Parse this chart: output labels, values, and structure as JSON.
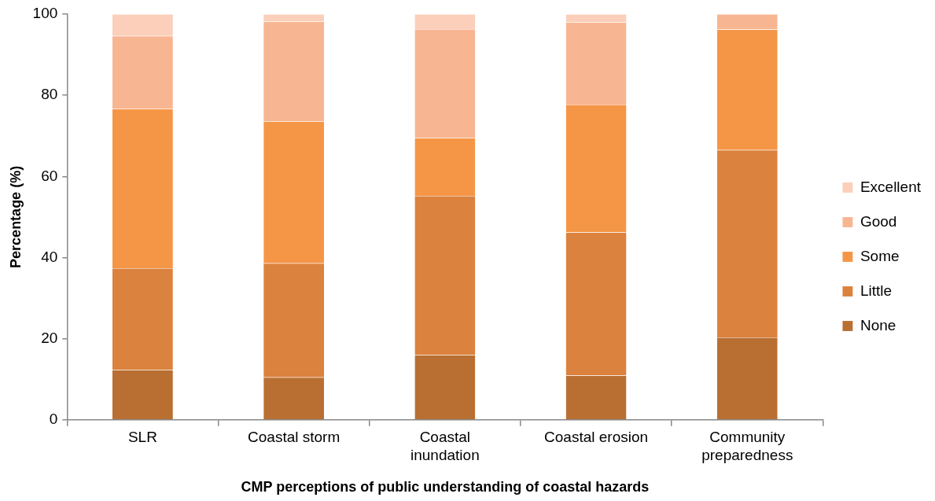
{
  "chart_data": {
    "type": "bar",
    "stacked": true,
    "xlabel": "CMP perceptions of public understanding of coastal hazards",
    "ylabel": "Percentage (%)",
    "categories": [
      "SLR",
      "Coastal storm",
      "Coastal inundation",
      "Coastal erosion",
      "Community preparedness"
    ],
    "series": [
      {
        "name": "None",
        "color": "#b96f32",
        "values": [
          12.3,
          10.5,
          16.0,
          10.9,
          20.3
        ]
      },
      {
        "name": "Little",
        "color": "#db823e",
        "values": [
          25.1,
          28.1,
          39.2,
          35.3,
          46.2
        ]
      },
      {
        "name": "Some",
        "color": "#f59647",
        "values": [
          39.3,
          35.0,
          14.3,
          31.5,
          29.7
        ]
      },
      {
        "name": "Good",
        "color": "#f8b592",
        "values": [
          17.9,
          24.6,
          26.8,
          20.3,
          3.8
        ]
      },
      {
        "name": "Excellent",
        "color": "#fbcfba",
        "values": [
          5.4,
          1.8,
          3.7,
          2.0,
          0
        ]
      }
    ],
    "ylim": [
      0,
      100
    ],
    "yticks": [
      0,
      20,
      40,
      60,
      80,
      100
    ],
    "grid": false,
    "legend": "right"
  }
}
